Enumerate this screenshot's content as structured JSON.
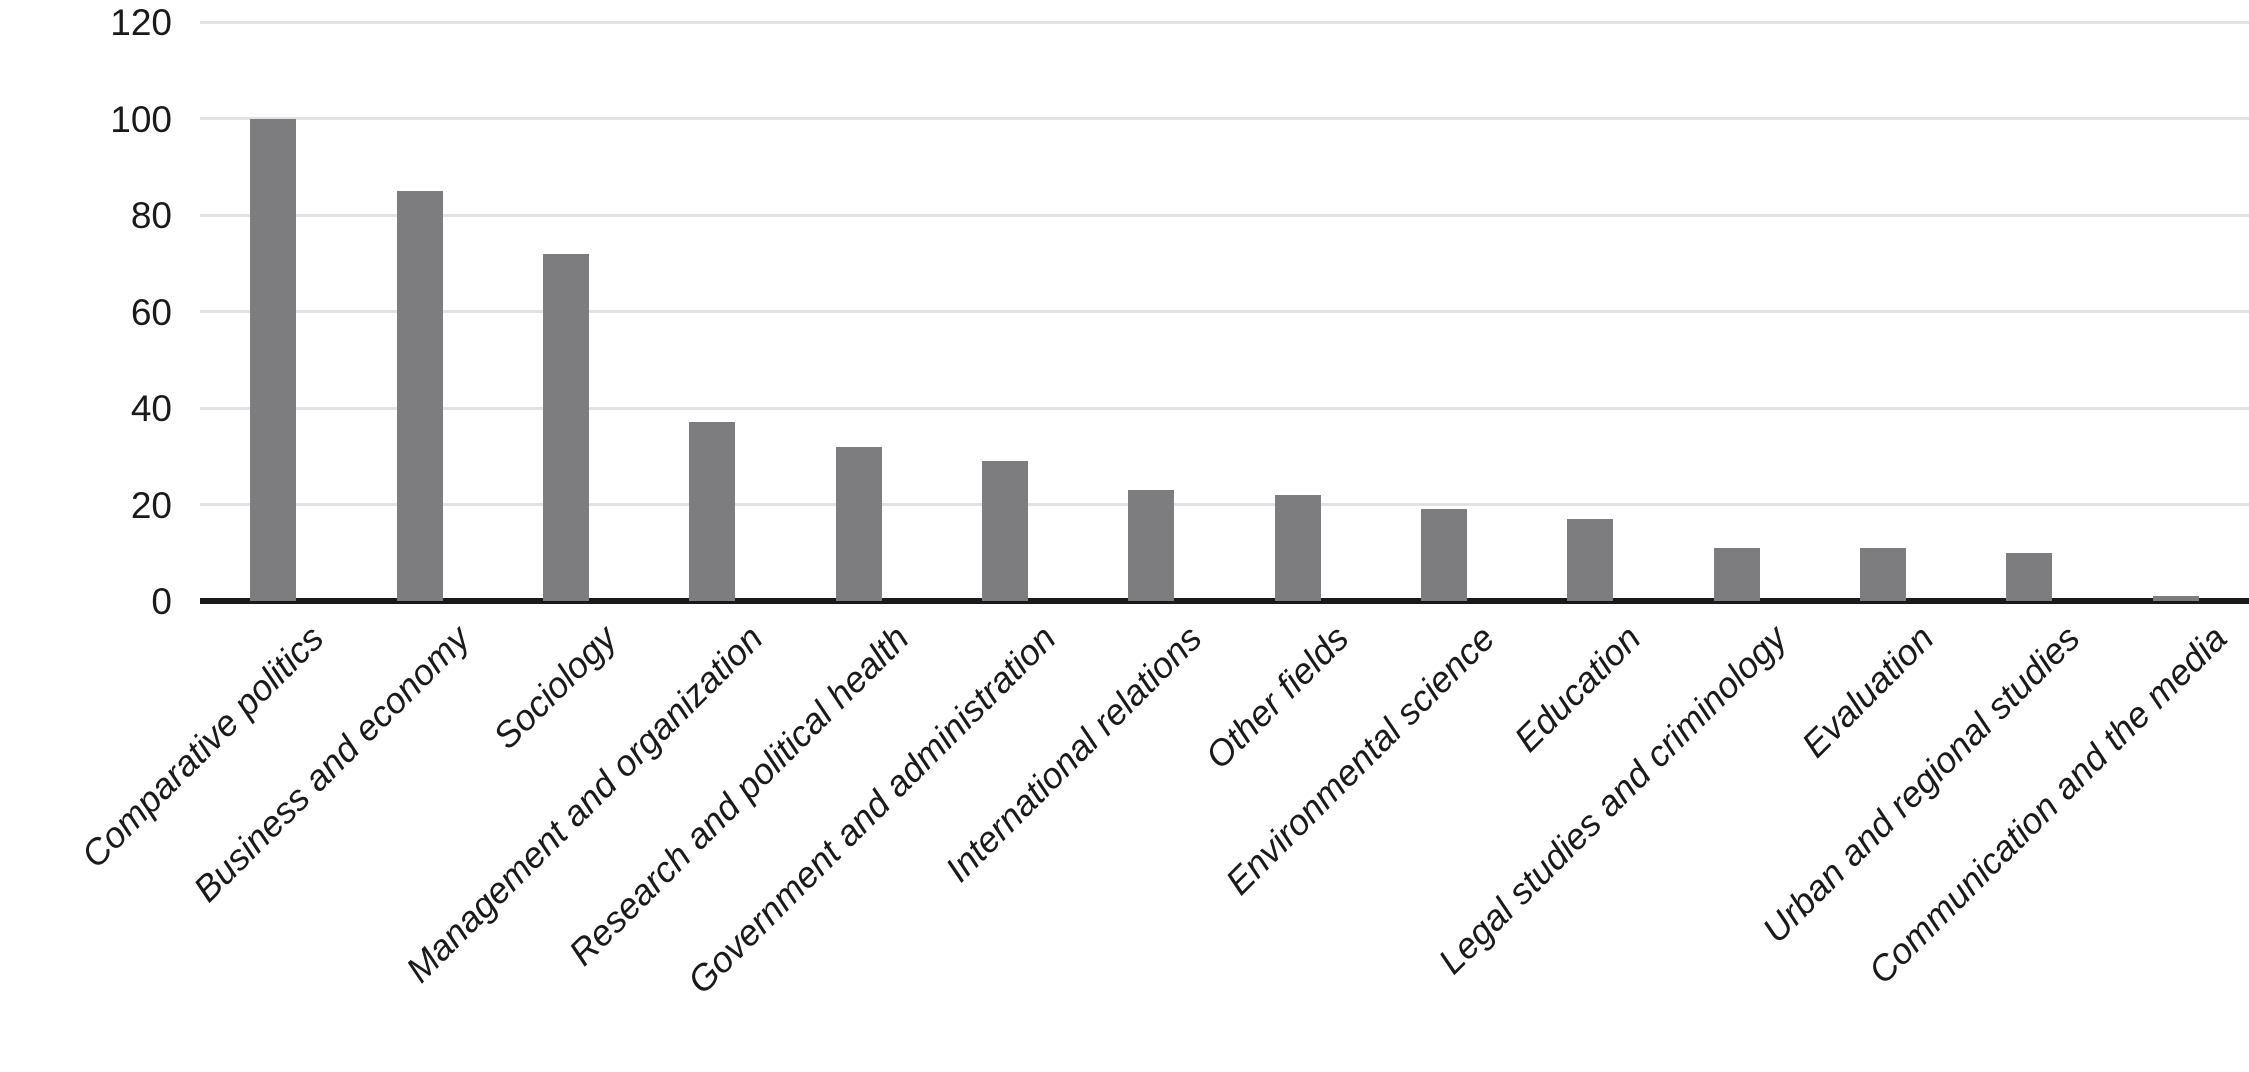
{
  "chart_data": {
    "type": "bar",
    "categories": [
      "Comparative politics",
      "Business and economy",
      "Sociology",
      "Management and organization",
      "Research and political health",
      "Government and administration",
      "International relations",
      "Other fields",
      "Environmental science",
      "Education",
      "Legal studies and criminology",
      "Evaluation",
      "Urban and regional studies",
      "Communication and the media"
    ],
    "values": [
      100,
      85,
      72,
      37,
      32,
      29,
      23,
      22,
      19,
      17,
      11,
      11,
      10,
      1
    ],
    "title": "",
    "xlabel": "",
    "ylabel": "",
    "ylim": [
      0,
      120
    ],
    "yticks": [
      0,
      20,
      40,
      60,
      80,
      100,
      120
    ],
    "grid": true,
    "legend": false,
    "bar_color": "#7d7d7f",
    "gridline_color": "#e2e2e4",
    "axis_color": "#1a1a1a",
    "text_color": "#1a1a1a"
  }
}
